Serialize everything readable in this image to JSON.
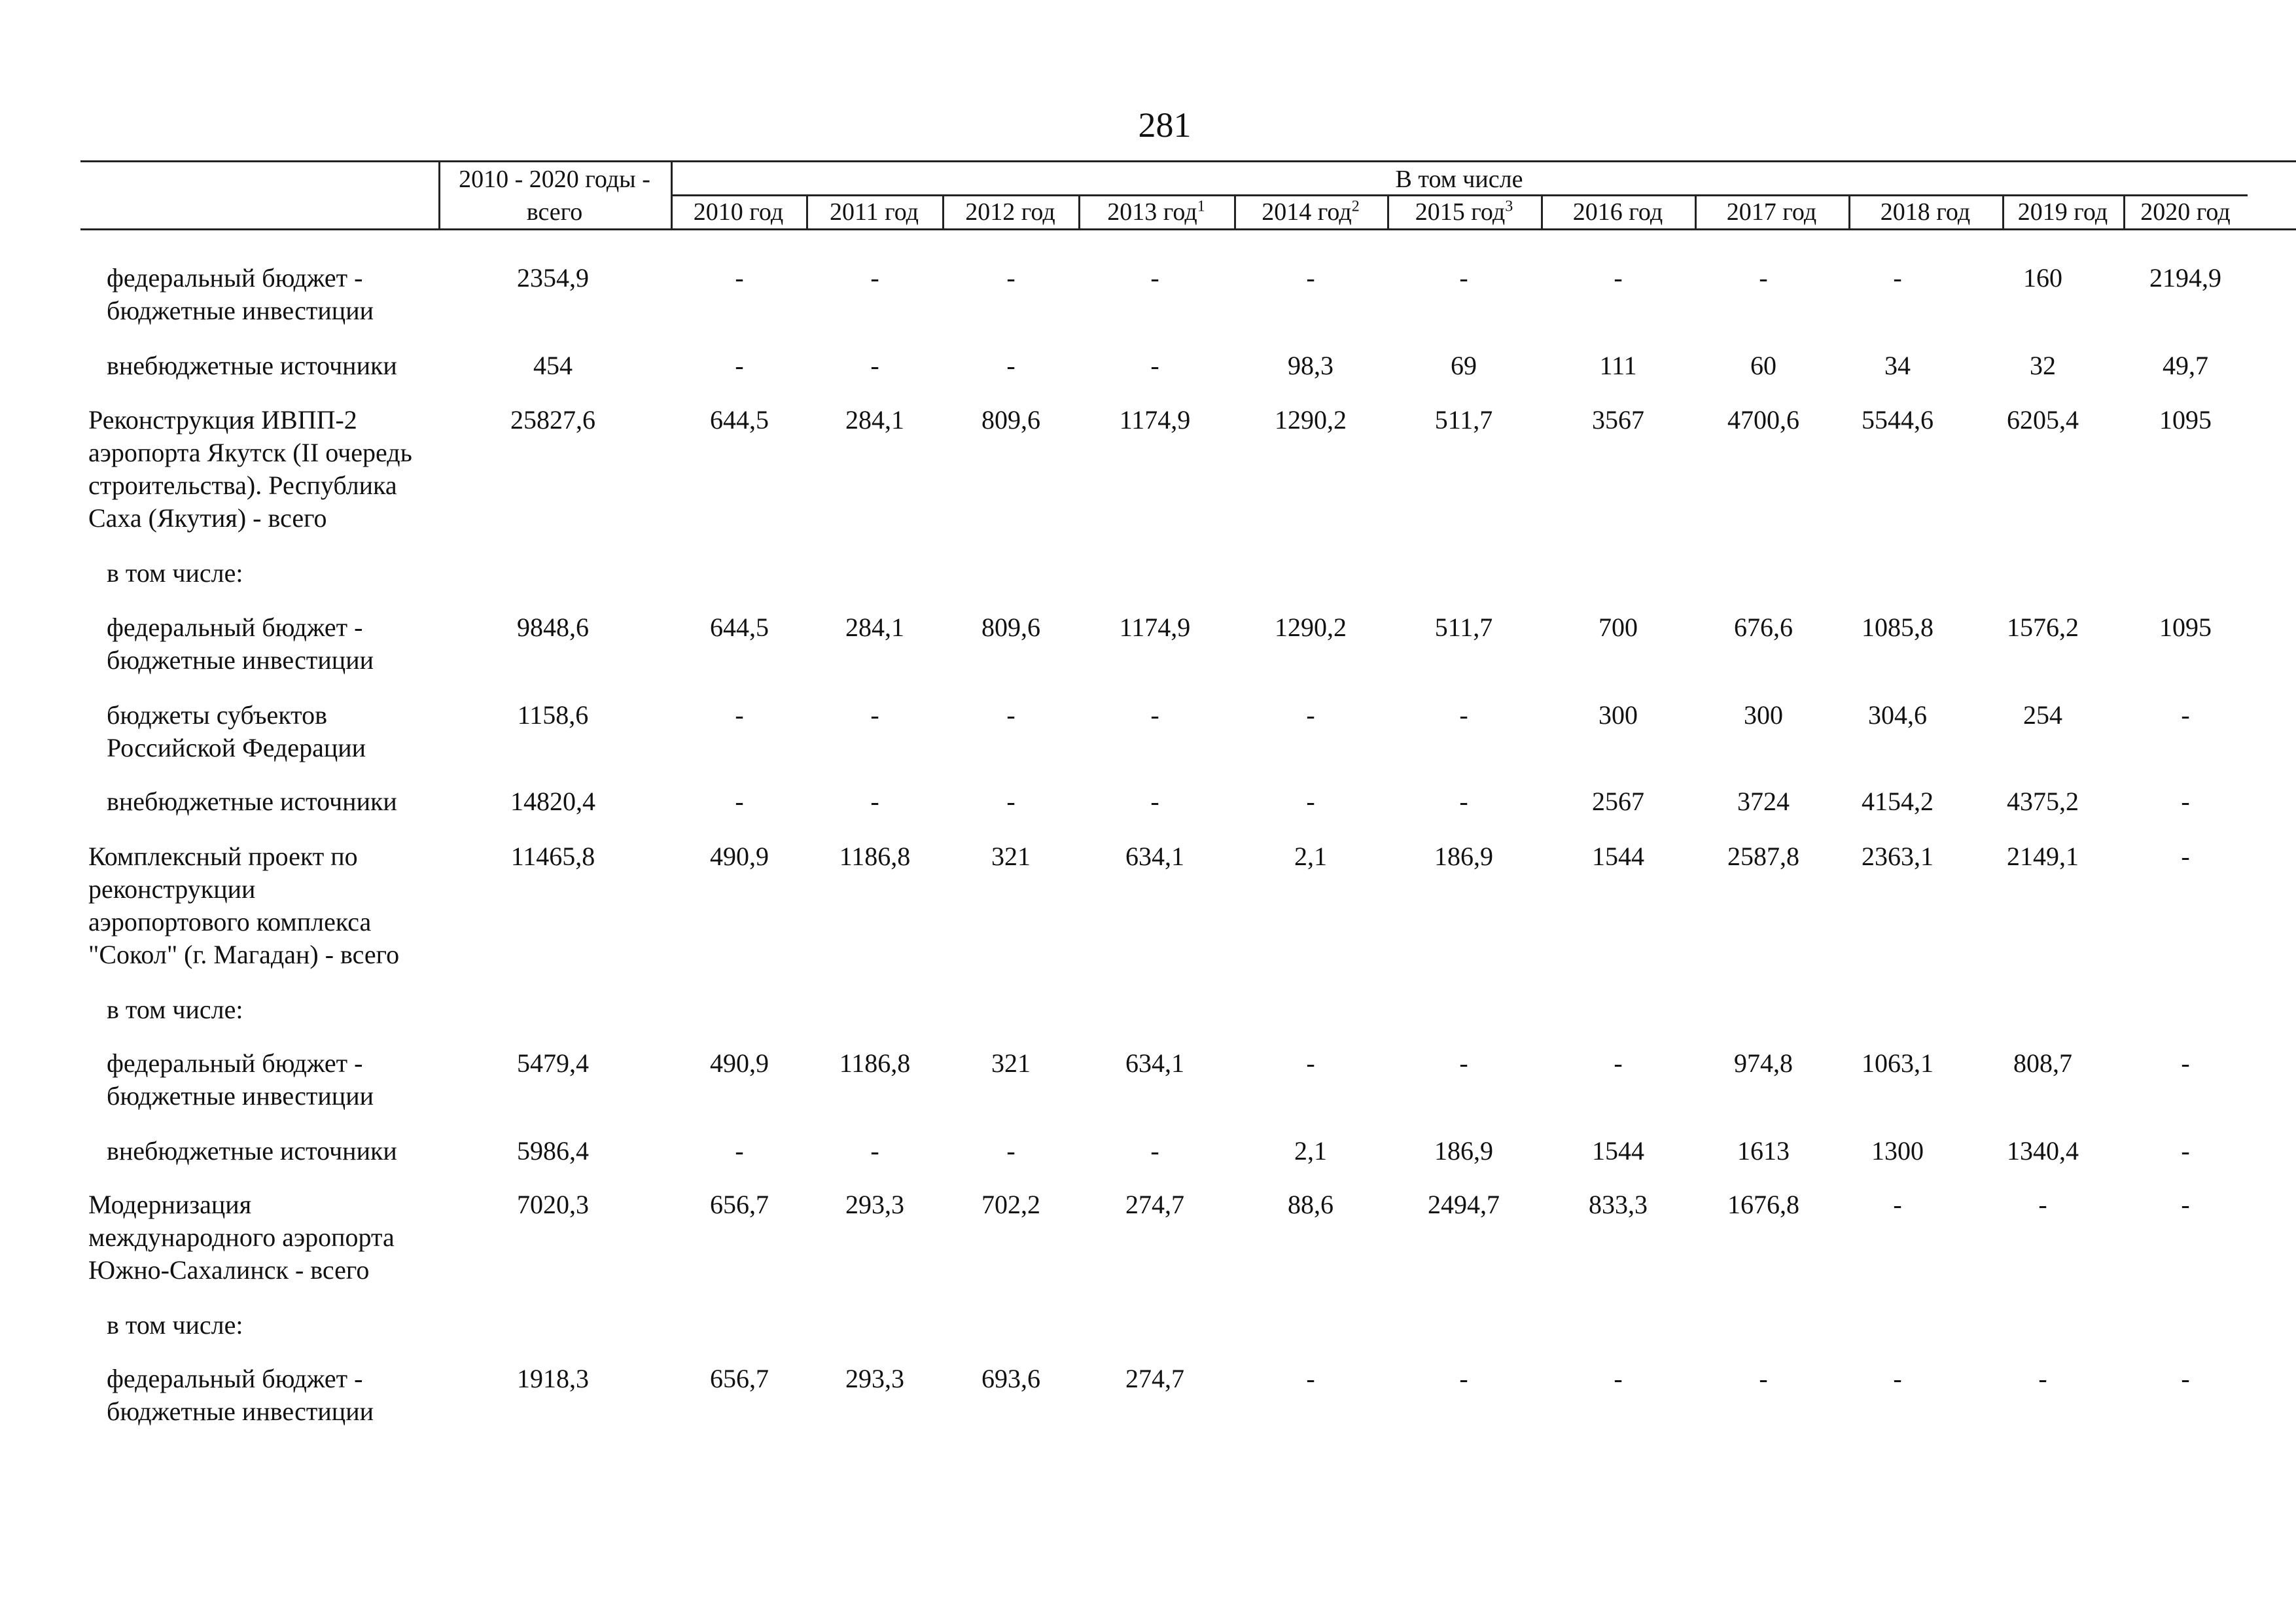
{
  "page_number": "281",
  "table": {
    "total_header": [
      "2010 - 2020 годы -",
      "всего"
    ],
    "group_header": "В том числе",
    "year_headers": [
      {
        "year": "2010 год",
        "sup": ""
      },
      {
        "year": "2011 год",
        "sup": ""
      },
      {
        "year": "2012 год",
        "sup": ""
      },
      {
        "year": "2013 год",
        "sup": "1"
      },
      {
        "year": "2014 год",
        "sup": "2"
      },
      {
        "year": "2015 год",
        "sup": "3"
      },
      {
        "year": "2016 год",
        "sup": ""
      },
      {
        "year": "2017 год",
        "sup": ""
      },
      {
        "year": "2018 год",
        "sup": ""
      },
      {
        "year": "2019 год",
        "sup": ""
      },
      {
        "year": "2020 год",
        "sup": ""
      }
    ],
    "rows": [
      {
        "kind": "sub",
        "label": [
          "федеральный бюджет -",
          "бюджетные инвестиции"
        ],
        "total": "2354,9",
        "values": [
          "-",
          "-",
          "-",
          "-",
          "-",
          "-",
          "-",
          "-",
          "-",
          "160",
          "2194,9"
        ]
      },
      {
        "kind": "sub",
        "label": [
          "внебюджетные источники"
        ],
        "total": "454",
        "values": [
          "-",
          "-",
          "-",
          "-",
          "98,3",
          "69",
          "111",
          "60",
          "34",
          "32",
          "49,7"
        ]
      },
      {
        "kind": "main",
        "label": [
          "Реконструкция ИВПП-2",
          "аэропорта Якутск (II очередь",
          "строительства). Республика",
          "Саха (Якутия) - всего"
        ],
        "total": "25827,6",
        "values": [
          "644,5",
          "284,1",
          "809,6",
          "1174,9",
          "1290,2",
          "511,7",
          "3567",
          "4700,6",
          "5544,6",
          "6205,4",
          "1095"
        ]
      },
      {
        "kind": "sub",
        "label": [
          "в том числе:"
        ],
        "total": "",
        "values": []
      },
      {
        "kind": "sub",
        "label": [
          "федеральный бюджет -",
          "бюджетные инвестиции"
        ],
        "total": "9848,6",
        "values": [
          "644,5",
          "284,1",
          "809,6",
          "1174,9",
          "1290,2",
          "511,7",
          "700",
          "676,6",
          "1085,8",
          "1576,2",
          "1095"
        ]
      },
      {
        "kind": "sub",
        "label": [
          "бюджеты субъектов",
          "Российской Федерации"
        ],
        "total": "1158,6",
        "values": [
          "-",
          "-",
          "-",
          "-",
          "-",
          "-",
          "300",
          "300",
          "304,6",
          "254",
          "-"
        ]
      },
      {
        "kind": "sub",
        "label": [
          "внебюджетные источники"
        ],
        "total": "14820,4",
        "values": [
          "-",
          "-",
          "-",
          "-",
          "-",
          "-",
          "2567",
          "3724",
          "4154,2",
          "4375,2",
          "-"
        ]
      },
      {
        "kind": "main",
        "label": [
          "Комплексный проект по",
          "реконструкции",
          "аэропортового комплекса",
          "\"Сокол\" (г. Магадан) - всего"
        ],
        "total": "11465,8",
        "values": [
          "490,9",
          "1186,8",
          "321",
          "634,1",
          "2,1",
          "186,9",
          "1544",
          "2587,8",
          "2363,1",
          "2149,1",
          "-"
        ]
      },
      {
        "kind": "sub",
        "label": [
          "в том числе:"
        ],
        "total": "",
        "values": []
      },
      {
        "kind": "sub",
        "label": [
          "федеральный бюджет -",
          "бюджетные инвестиции"
        ],
        "total": "5479,4",
        "values": [
          "490,9",
          "1186,8",
          "321",
          "634,1",
          "-",
          "-",
          "-",
          "974,8",
          "1063,1",
          "808,7",
          "-"
        ]
      },
      {
        "kind": "sub",
        "label": [
          "внебюджетные источники"
        ],
        "total": "5986,4",
        "values": [
          "-",
          "-",
          "-",
          "-",
          "2,1",
          "186,9",
          "1544",
          "1613",
          "1300",
          "1340,4",
          "-"
        ]
      },
      {
        "kind": "main",
        "label": [
          "Модернизация",
          "международного аэропорта",
          "Южно-Сахалинск  - всего"
        ],
        "total": "7020,3",
        "values": [
          "656,7",
          "293,3",
          "702,2",
          "274,7",
          "88,6",
          "2494,7",
          "833,3",
          "1676,8",
          "-",
          "-",
          "-"
        ]
      },
      {
        "kind": "sub",
        "label": [
          "в том числе:"
        ],
        "total": "",
        "values": []
      },
      {
        "kind": "sub",
        "label": [
          "федеральный бюджет -",
          "бюджетные инвестиции"
        ],
        "total": "1918,3",
        "values": [
          "656,7",
          "293,3",
          "693,6",
          "274,7",
          "-",
          "-",
          "-",
          "-",
          "-",
          "-",
          "-"
        ]
      }
    ]
  }
}
